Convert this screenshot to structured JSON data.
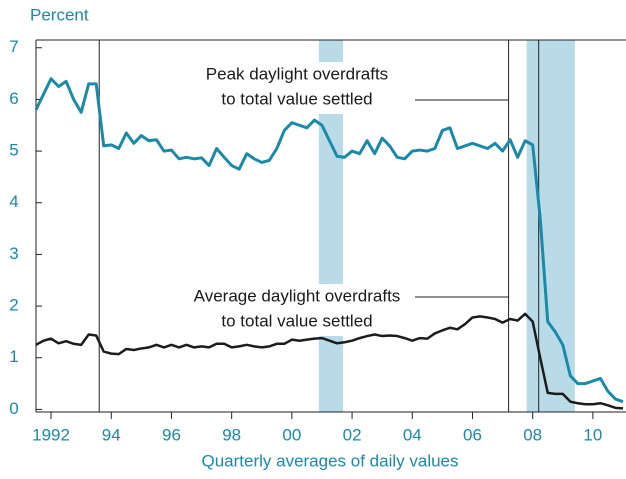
{
  "chart_data": {
    "type": "line",
    "y_axis_label": "Percent",
    "x_axis_label": "Quarterly averages of daily values",
    "xlim": [
      1991.5,
      2011.1
    ],
    "xticks": [
      1992,
      {
        "value": 1994,
        "label": "94"
      },
      {
        "value": 1996,
        "label": "96"
      },
      {
        "value": 1998,
        "label": "98"
      },
      {
        "value": 2000,
        "label": "00"
      },
      {
        "value": 2002,
        "label": "02"
      },
      {
        "value": 2004,
        "label": "04"
      },
      {
        "value": 2006,
        "label": "06"
      },
      {
        "value": 2008,
        "label": "08"
      },
      {
        "value": 2010,
        "label": "10"
      }
    ],
    "ylim": [
      -0.05,
      7.15
    ],
    "yticks": [
      0,
      1,
      2,
      3,
      4,
      5,
      6,
      7
    ],
    "shaded_periods": [
      [
        2000.9,
        2001.7
      ],
      [
        2007.8,
        2009.4
      ]
    ],
    "shade_color": "#b9dbe8",
    "vertical_lines": [
      1993.6,
      2007.2,
      2008.2
    ],
    "x": [
      1991.5,
      1991.75,
      1992,
      1992.25,
      1992.5,
      1992.75,
      1993,
      1993.25,
      1993.5,
      1993.75,
      1994,
      1994.25,
      1994.5,
      1994.75,
      1995,
      1995.25,
      1995.5,
      1995.75,
      1996,
      1996.25,
      1996.5,
      1996.75,
      1997,
      1997.25,
      1997.5,
      1997.75,
      1998,
      1998.25,
      1998.5,
      1998.75,
      1999,
      1999.25,
      1999.5,
      1999.75,
      2000,
      2000.25,
      2000.5,
      2000.75,
      2001,
      2001.25,
      2001.5,
      2001.75,
      2002,
      2002.25,
      2002.5,
      2002.75,
      2003,
      2003.25,
      2003.5,
      2003.75,
      2004,
      2004.25,
      2004.5,
      2004.75,
      2005,
      2005.25,
      2005.5,
      2005.75,
      2006,
      2006.25,
      2006.5,
      2006.75,
      2007,
      2007.25,
      2007.5,
      2007.75,
      2008,
      2008.25,
      2008.5,
      2008.75,
      2009,
      2009.25,
      2009.5,
      2009.75,
      2010,
      2010.25,
      2010.5,
      2010.75,
      2011
    ],
    "series": [
      {
        "name": "Peak daylight overdrafts to total value settled",
        "color": "#1a8aa8",
        "label_lines": [
          "Peak daylight overdrafts",
          "to total value settled"
        ],
        "values": [
          5.8,
          6.1,
          6.4,
          6.25,
          6.35,
          6.0,
          5.75,
          6.3,
          6.3,
          5.1,
          5.12,
          5.05,
          5.35,
          5.15,
          5.3,
          5.2,
          5.22,
          5.0,
          5.02,
          4.85,
          4.88,
          4.85,
          4.87,
          4.72,
          5.05,
          4.88,
          4.72,
          4.65,
          4.95,
          4.85,
          4.78,
          4.82,
          5.05,
          5.4,
          5.55,
          5.5,
          5.45,
          5.6,
          5.5,
          5.2,
          4.9,
          4.88,
          5.0,
          4.95,
          5.2,
          4.95,
          5.25,
          5.1,
          4.88,
          4.85,
          5.0,
          5.02,
          5.0,
          5.05,
          5.4,
          5.45,
          5.05,
          5.1,
          5.15,
          5.1,
          5.05,
          5.15,
          5.0,
          5.22,
          4.88,
          5.2,
          5.12,
          3.7,
          1.7,
          1.5,
          1.25,
          0.65,
          0.5,
          0.5,
          0.55,
          0.6,
          0.35,
          0.2,
          0.15
        ]
      },
      {
        "name": "Average daylight overdrafts to total value settled",
        "color": "#1c1c1c",
        "label_lines": [
          "Average daylight overdrafts",
          "to total value settled"
        ],
        "values": [
          1.25,
          1.33,
          1.37,
          1.28,
          1.32,
          1.27,
          1.25,
          1.45,
          1.43,
          1.12,
          1.08,
          1.07,
          1.17,
          1.15,
          1.18,
          1.2,
          1.25,
          1.2,
          1.25,
          1.2,
          1.25,
          1.2,
          1.22,
          1.2,
          1.27,
          1.27,
          1.2,
          1.22,
          1.25,
          1.22,
          1.2,
          1.22,
          1.27,
          1.27,
          1.35,
          1.33,
          1.35,
          1.37,
          1.38,
          1.33,
          1.28,
          1.3,
          1.33,
          1.38,
          1.42,
          1.45,
          1.42,
          1.43,
          1.42,
          1.38,
          1.33,
          1.38,
          1.37,
          1.47,
          1.53,
          1.58,
          1.55,
          1.65,
          1.78,
          1.8,
          1.78,
          1.75,
          1.68,
          1.75,
          1.72,
          1.85,
          1.7,
          1.0,
          0.32,
          0.3,
          0.3,
          0.15,
          0.12,
          0.1,
          0.1,
          0.12,
          0.08,
          0.03,
          0.02
        ]
      }
    ]
  }
}
